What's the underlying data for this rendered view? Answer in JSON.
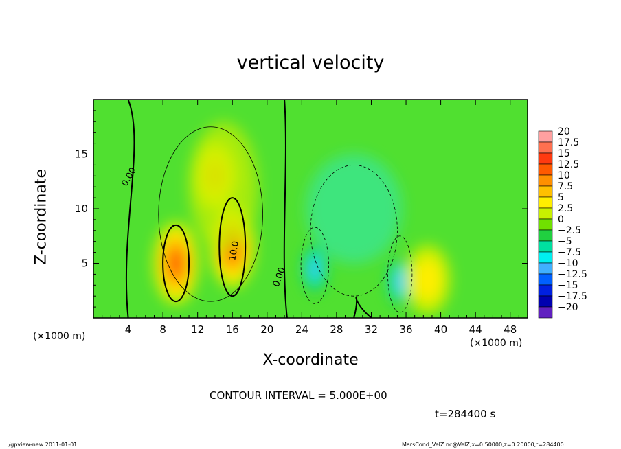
{
  "chart_data": {
    "type": "heatmap",
    "title": "vertical velocity",
    "xlabel": "X-coordinate",
    "ylabel": "Z-coordinate",
    "x_unit": "(×1000 m)",
    "xlim": [
      0,
      50
    ],
    "ylim": [
      0,
      20
    ],
    "xticks": [
      4,
      8,
      12,
      16,
      20,
      24,
      28,
      32,
      36,
      40,
      44,
      48
    ],
    "yticks": [
      5,
      10,
      15
    ],
    "colorbar": {
      "levels": [
        20,
        17.5,
        15,
        12.5,
        10,
        7.5,
        5,
        2.5,
        0,
        -2.5,
        -5,
        -7.5,
        -10,
        -12.5,
        -15,
        -17.5,
        -20
      ],
      "labels": [
        "20",
        "17.5",
        "15",
        "12.5",
        "10",
        "7.5",
        "5",
        "2.5",
        "0",
        "−2.5",
        "−5",
        "−7.5",
        "−10",
        "−12.5",
        "−15",
        "−17.5",
        "−20"
      ],
      "colors": [
        "#ffa0a0",
        "#ff7050",
        "#ff3a10",
        "#ff5a00",
        "#ff9000",
        "#ffc000",
        "#ffee00",
        "#c8f000",
        "#70e000",
        "#20d040",
        "#00e0a0",
        "#00f0f0",
        "#40b0ff",
        "#0060ff",
        "#0020e0",
        "#0000b0",
        "#6020c0"
      ]
    },
    "features": [
      {
        "kind": "updraft",
        "x": 9.5,
        "z": 5.0,
        "peak": 12.5
      },
      {
        "kind": "updraft",
        "x": 16.0,
        "z": 6.5,
        "peak": 12.5
      },
      {
        "kind": "updraft",
        "x": 14.0,
        "z": 13.0,
        "peak": 7.5
      },
      {
        "kind": "downdraft",
        "x": 25.5,
        "z": 4.5,
        "peak": -10
      },
      {
        "kind": "downdraft",
        "x": 35.3,
        "z": 3.3,
        "peak": -10
      },
      {
        "kind": "updraft",
        "x": 38.5,
        "z": 3.5,
        "peak": 5
      }
    ],
    "contour_labels": [
      "0.00",
      "10.0",
      "0.00"
    ]
  },
  "annotations": {
    "contour_interval": "CONTOUR INTERVAL = 5.000E+00",
    "time": "t=284400  s",
    "footer_left": "./gpview-new   2011-01-01",
    "footer_right": "MarsCond_VelZ.nc@VelZ,x=0:50000,z=0:20000,t=284400"
  }
}
